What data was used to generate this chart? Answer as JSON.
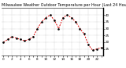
{
  "title": "Milwaukee Weather Outdoor Temperature per Hour (Last 24 Hours)",
  "hours": [
    0,
    1,
    2,
    3,
    4,
    5,
    6,
    7,
    8,
    9,
    10,
    11,
    12,
    13,
    14,
    15,
    16,
    17,
    18,
    19,
    20,
    21,
    22,
    23
  ],
  "temps": [
    20,
    22,
    24,
    23,
    22,
    21,
    22,
    24,
    30,
    35,
    38,
    40,
    36,
    30,
    38,
    40,
    38,
    35,
    30,
    26,
    18,
    14,
    15,
    16
  ],
  "line_color": "#dd0000",
  "dot_color": "#000000",
  "bg_color": "#ffffff",
  "grid_color": "#999999",
  "ylim": [
    10,
    45
  ],
  "yticks": [
    15,
    20,
    25,
    30,
    35,
    40
  ],
  "title_fontsize": 3.5,
  "tick_fontsize": 3.0,
  "vgrid_positions": [
    0,
    2,
    4,
    6,
    8,
    10,
    12,
    14,
    16,
    18,
    20,
    22
  ]
}
